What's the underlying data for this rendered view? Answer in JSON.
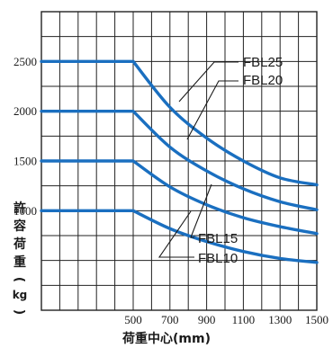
{
  "chart_data": {
    "type": "line",
    "xlabel": "荷重中心(mm)",
    "ylabel_chars": [
      "許",
      "容",
      "荷",
      "重",
      "(",
      "kg",
      ")"
    ],
    "x_ticks": [
      500,
      700,
      900,
      1100,
      1300,
      1500
    ],
    "y_ticks": [
      1000,
      1500,
      2000,
      2500
    ],
    "xlim": [
      0,
      1500
    ],
    "ylim": [
      0,
      3000
    ],
    "grid": true,
    "line_color": "#1a6fc0",
    "grid_color": "#222222",
    "series": [
      {
        "name": "FBL25",
        "x": [
          0,
          500,
          700,
          900,
          1100,
          1300,
          1500
        ],
        "y": [
          2500,
          2500,
          2040,
          1730,
          1500,
          1330,
          1260
        ]
      },
      {
        "name": "FBL20",
        "x": [
          0,
          500,
          700,
          900,
          1100,
          1300,
          1500
        ],
        "y": [
          2000,
          2000,
          1640,
          1400,
          1220,
          1090,
          1010
        ]
      },
      {
        "name": "FBL15",
        "x": [
          0,
          500,
          700,
          900,
          1100,
          1300,
          1500
        ],
        "y": [
          1500,
          1500,
          1240,
          1060,
          930,
          840,
          770
        ]
      },
      {
        "name": "FBL10",
        "x": [
          0,
          500,
          700,
          900,
          1100,
          1300,
          1500
        ],
        "y": [
          1000,
          1000,
          820,
          690,
          590,
          520,
          480
        ]
      }
    ]
  }
}
